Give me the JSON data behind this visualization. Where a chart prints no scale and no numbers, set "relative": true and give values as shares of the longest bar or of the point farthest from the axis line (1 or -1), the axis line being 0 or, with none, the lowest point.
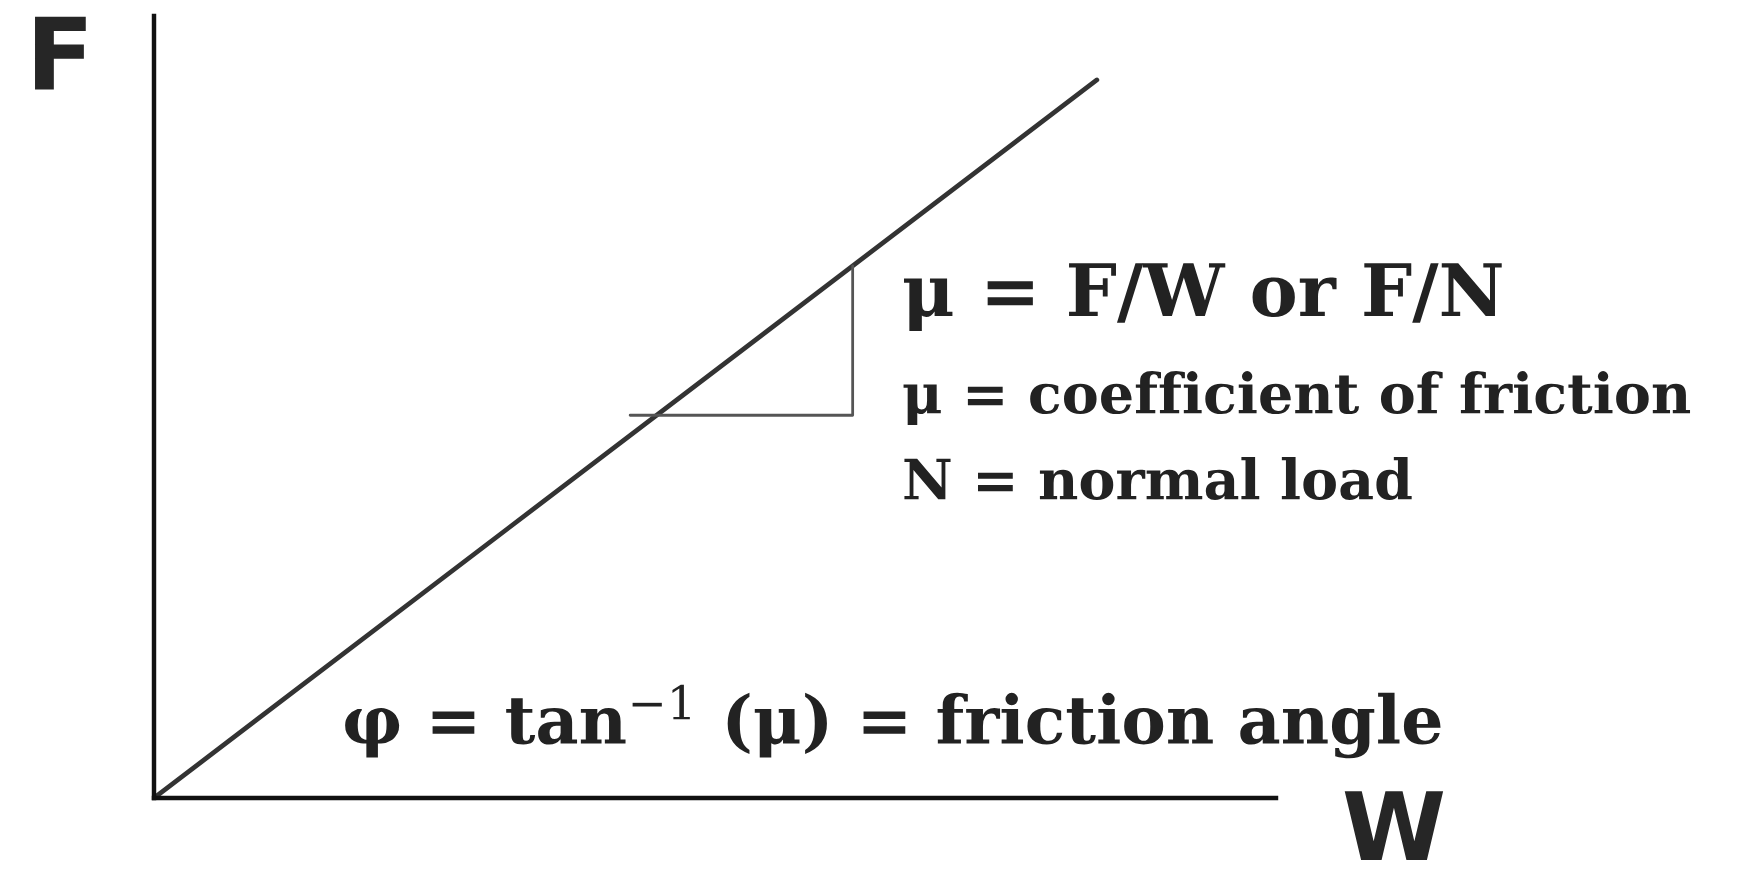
{
  "chart_data": {
    "type": "line",
    "relative": true,
    "xlabel": "W",
    "ylabel": "F",
    "categories": [
      null,
      null
    ],
    "series": [
      {
        "color": "#333333",
        "values": [
          0,
          1
        ]
      }
    ],
    "annotations": [
      "μ = F/W or F/N",
      "μ = coefficient of friction",
      "N = normal load",
      "φ = tan$^{−1}$ (μ) = friction angle"
    ],
    "line_style": "solid"
  }
}
